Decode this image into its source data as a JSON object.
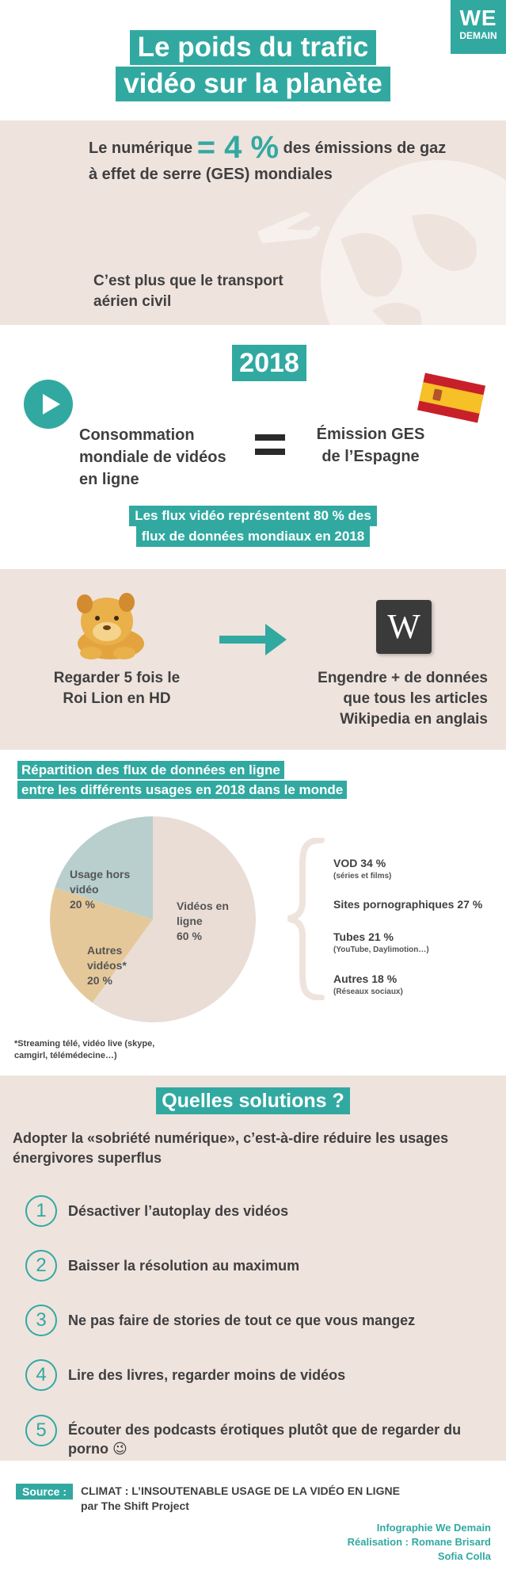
{
  "brand": {
    "line1": "WE",
    "line2": "DEMAIN"
  },
  "title": {
    "line1": "Le poids du trafic",
    "line2": "vidéo sur la planète"
  },
  "numerique": {
    "pre": "Le numérique ",
    "big": "= 4 %",
    "post": " des émissions de gaz à effet de serre (GES) mondiales"
  },
  "transport": "C’est plus que le transport aérien civil",
  "year": "2018",
  "consommation": "Consommation mondiale de vidéos en ligne",
  "emission_espagne": "Émission GES de l’Espagne",
  "flux_video": {
    "line1": "Les flux vidéo représentent 80 % des",
    "line2": "flux de données mondiaux en 2018"
  },
  "roi_lion": "Regarder 5 fois le Roi Lion en HD",
  "wikipedia": {
    "logo": "W",
    "text": "Engendre + de données que tous les articles Wikipedia en anglais"
  },
  "repartition": {
    "line1": "Répartition des flux de données en ligne",
    "line2": "entre les différents usages en 2018 dans le monde"
  },
  "chart_data": {
    "type": "pie",
    "slices": [
      {
        "label": "Vidéos en ligne",
        "value": 60,
        "display": "60 %",
        "color": "#eaddd6"
      },
      {
        "label": "Autres vidéos*",
        "value": 20,
        "display": "20 %",
        "color": "#e5c89a"
      },
      {
        "label": "Usage hors vidéo",
        "value": 20,
        "display": "20 %",
        "color": "#b8cfcd"
      }
    ],
    "breakdown": [
      {
        "label": "VOD 34 %",
        "sub": "(séries et films)"
      },
      {
        "label": "Sites pornographiques  27 %",
        "sub": ""
      },
      {
        "label": "Tubes 21 %",
        "sub": "(YouTube, Daylimotion…)"
      },
      {
        "label": "Autres 18 %",
        "sub": "(Réseaux sociaux)"
      }
    ]
  },
  "footnote": "*Streaming télé, vidéo live (skype, camgirl, télémédecine…)",
  "solutions": {
    "title": "Quelles solutions ?",
    "intro": "Adopter la «sobriété numérique», c’est-à-dire réduire les usages énergivores superflus",
    "steps": [
      {
        "num": "1",
        "text": "Désactiver l’autoplay des vidéos"
      },
      {
        "num": "2",
        "text": "Baisser la résolution au maximum"
      },
      {
        "num": "3",
        "text": "Ne pas faire de stories de tout ce que vous mangez"
      },
      {
        "num": "4",
        "text": "Lire des livres, regarder moins de vidéos"
      },
      {
        "num": "5",
        "text": "Écouter des podcasts érotiques plutôt que de regarder du porno 😉"
      }
    ]
  },
  "source": {
    "label": "Source :",
    "line1": "CLIMAT : L’INSOUTENABLE USAGE DE LA VIDÉO EN LIGNE",
    "line2": "par The Shift Project"
  },
  "credits": {
    "line1": "Infographie We Demain",
    "line2": "Réalisation : Romane Brisard",
    "line3": "Sofia Colla"
  },
  "colors": {
    "teal": "#31a9a1",
    "beige": "#efe3de",
    "text": "#3f3f3f"
  }
}
